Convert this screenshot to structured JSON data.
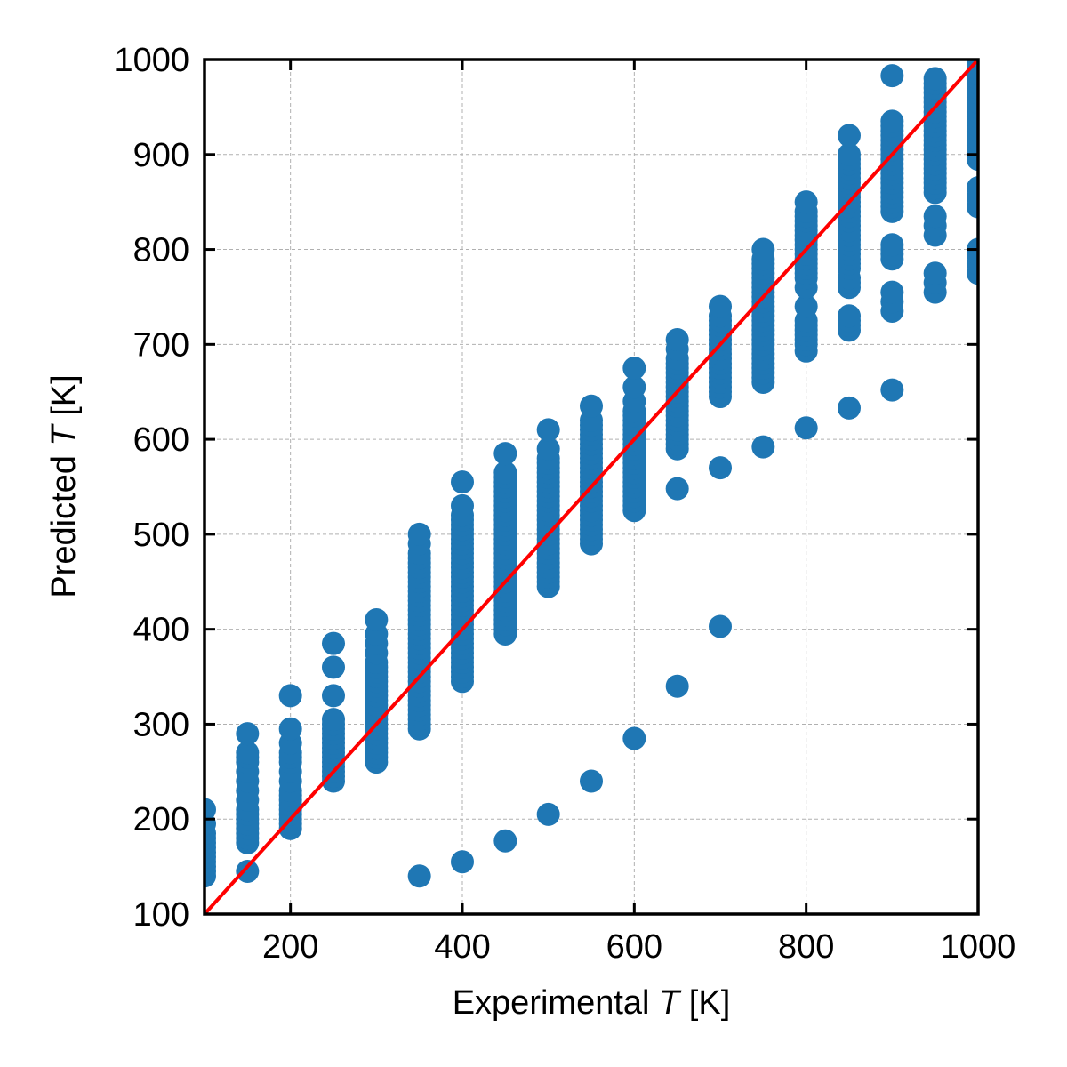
{
  "chart_data": {
    "type": "scatter",
    "xlabel": {
      "prefix": "Experimental ",
      "var": "T",
      "suffix": " [K]"
    },
    "ylabel": {
      "prefix": "Predicted ",
      "var": "T",
      "suffix": " [K]"
    },
    "xlim": [
      100,
      1000
    ],
    "ylim": [
      100,
      1000
    ],
    "xticks": [
      200,
      400,
      600,
      800,
      1000
    ],
    "yticks": [
      100,
      200,
      300,
      400,
      500,
      600,
      700,
      800,
      900,
      1000
    ],
    "grid": true,
    "colors": {
      "points": "#1f77b4",
      "reference_line": "#ff0000",
      "grid": "#b0b0b0"
    },
    "reference_line": {
      "from": [
        100,
        100
      ],
      "to": [
        1000,
        1000
      ]
    },
    "columns": [
      {
        "x": 100,
        "y": [
          140,
          145,
          150,
          155,
          160,
          165,
          170,
          175,
          180,
          185,
          195,
          210
        ]
      },
      {
        "x": 150,
        "y": [
          145,
          175,
          180,
          185,
          190,
          195,
          200,
          205,
          210,
          220,
          230,
          240,
          250,
          260,
          265,
          270,
          290
        ]
      },
      {
        "x": 200,
        "y": [
          190,
          195,
          200,
          205,
          210,
          215,
          220,
          225,
          230,
          240,
          250,
          260,
          265,
          270,
          280,
          295,
          330
        ]
      },
      {
        "x": 250,
        "y": [
          240,
          245,
          250,
          255,
          260,
          265,
          270,
          275,
          280,
          285,
          290,
          295,
          300,
          305,
          330,
          360,
          385
        ]
      },
      {
        "x": 300,
        "y": [
          260,
          265,
          270,
          275,
          280,
          285,
          290,
          295,
          300,
          305,
          310,
          315,
          320,
          325,
          330,
          335,
          340,
          345,
          350,
          355,
          360,
          365,
          375,
          385,
          395,
          410
        ]
      },
      {
        "x": 350,
        "y": [
          140,
          295,
          300,
          305,
          310,
          315,
          320,
          325,
          330,
          335,
          340,
          345,
          350,
          355,
          360,
          365,
          370,
          375,
          380,
          385,
          390,
          395,
          400,
          405,
          410,
          415,
          420,
          425,
          430,
          435,
          440,
          445,
          450,
          455,
          460,
          465,
          470,
          475,
          480,
          490,
          500
        ]
      },
      {
        "x": 400,
        "y": [
          155,
          345,
          350,
          355,
          360,
          365,
          370,
          375,
          380,
          385,
          390,
          395,
          400,
          405,
          410,
          415,
          420,
          425,
          430,
          435,
          440,
          445,
          450,
          455,
          460,
          465,
          470,
          475,
          480,
          485,
          490,
          495,
          500,
          505,
          510,
          515,
          520,
          530,
          555
        ]
      },
      {
        "x": 450,
        "y": [
          177,
          395,
          400,
          405,
          410,
          415,
          420,
          425,
          430,
          435,
          440,
          445,
          450,
          455,
          460,
          465,
          470,
          475,
          480,
          485,
          490,
          495,
          500,
          505,
          510,
          515,
          520,
          525,
          530,
          535,
          540,
          545,
          550,
          555,
          560,
          565,
          585
        ]
      },
      {
        "x": 500,
        "y": [
          205,
          445,
          450,
          455,
          460,
          465,
          470,
          475,
          480,
          485,
          490,
          495,
          500,
          505,
          510,
          515,
          520,
          525,
          530,
          535,
          540,
          545,
          550,
          555,
          560,
          565,
          570,
          575,
          580,
          590,
          610
        ]
      },
      {
        "x": 550,
        "y": [
          240,
          490,
          495,
          500,
          505,
          510,
          515,
          520,
          525,
          530,
          535,
          540,
          545,
          550,
          555,
          560,
          565,
          570,
          575,
          580,
          585,
          590,
          595,
          600,
          605,
          610,
          615,
          620,
          635
        ]
      },
      {
        "x": 600,
        "y": [
          285,
          525,
          530,
          535,
          540,
          545,
          550,
          555,
          560,
          565,
          570,
          575,
          580,
          585,
          590,
          595,
          600,
          605,
          610,
          615,
          620,
          625,
          630,
          640,
          655,
          675
        ]
      },
      {
        "x": 650,
        "y": [
          340,
          548,
          590,
          595,
          600,
          605,
          610,
          615,
          620,
          625,
          630,
          635,
          640,
          645,
          650,
          655,
          660,
          665,
          670,
          675,
          680,
          685,
          695,
          705
        ]
      },
      {
        "x": 700,
        "y": [
          403,
          570,
          645,
          650,
          655,
          660,
          665,
          670,
          675,
          680,
          685,
          690,
          695,
          700,
          705,
          710,
          715,
          720,
          725,
          730,
          740
        ]
      },
      {
        "x": 750,
        "y": [
          592,
          660,
          665,
          670,
          675,
          680,
          685,
          690,
          695,
          700,
          705,
          710,
          715,
          720,
          725,
          730,
          735,
          740,
          745,
          750,
          755,
          760,
          765,
          770,
          775,
          780,
          785,
          790,
          800
        ]
      },
      {
        "x": 800,
        "y": [
          612,
          693,
          700,
          705,
          710,
          715,
          720,
          725,
          740,
          760,
          770,
          775,
          780,
          785,
          790,
          795,
          800,
          805,
          810,
          815,
          820,
          825,
          830,
          835,
          840,
          850
        ]
      },
      {
        "x": 850,
        "y": [
          633,
          715,
          720,
          725,
          730,
          760,
          765,
          770,
          780,
          785,
          790,
          795,
          800,
          805,
          810,
          815,
          820,
          825,
          830,
          835,
          840,
          845,
          850,
          855,
          860,
          865,
          870,
          875,
          880,
          885,
          890,
          895,
          900,
          920
        ]
      },
      {
        "x": 900,
        "y": [
          652,
          735,
          745,
          755,
          790,
          795,
          800,
          805,
          840,
          845,
          850,
          855,
          860,
          865,
          870,
          875,
          880,
          885,
          890,
          895,
          900,
          905,
          910,
          915,
          920,
          925,
          930,
          935,
          983
        ]
      },
      {
        "x": 950,
        "y": [
          755,
          765,
          775,
          815,
          825,
          835,
          860,
          865,
          870,
          875,
          880,
          885,
          890,
          895,
          900,
          905,
          910,
          915,
          920,
          925,
          930,
          935,
          940,
          945,
          950,
          955,
          960,
          965,
          970,
          975,
          980
        ]
      },
      {
        "x": 1000,
        "y": [
          775,
          785,
          795,
          800,
          845,
          855,
          865,
          895,
          900,
          905,
          910,
          915,
          920,
          925,
          930,
          935,
          940,
          945,
          950,
          955,
          960,
          965,
          970,
          975,
          980,
          985,
          990,
          995
        ]
      }
    ]
  }
}
